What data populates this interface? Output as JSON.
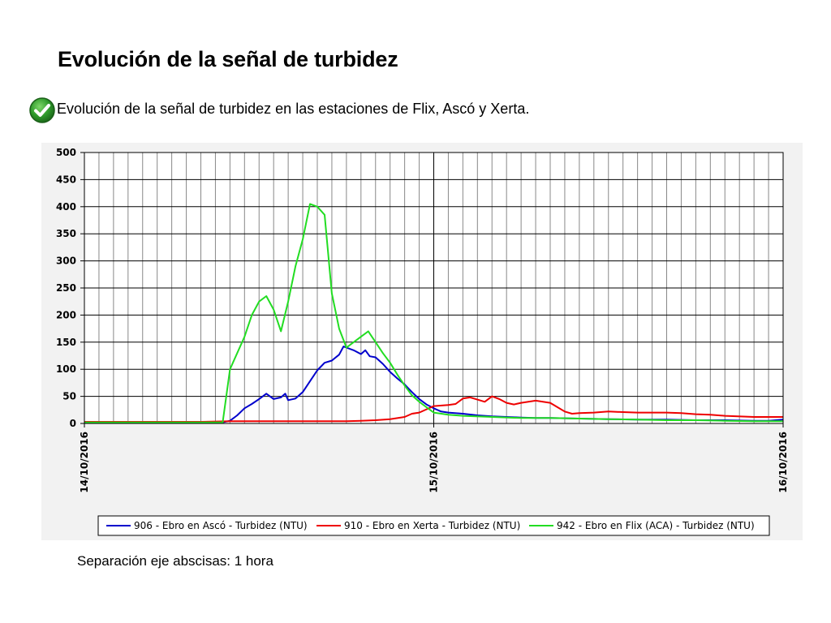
{
  "slide": {
    "title": "Evolución de la señal de turbidez",
    "bullet_icon": "checkmark-circle-icon",
    "bullet_text": "Evolución de la señal de turbidez en las estaciones de Flix, Ascó y Xerta.",
    "note": "Separación eje abscisas: 1 hora"
  },
  "chart_data": {
    "type": "line",
    "title": "",
    "xlabel": "",
    "ylabel": "",
    "x_unit": "hours from 14/10/2016 00:00",
    "xlim": [
      0,
      48
    ],
    "ylim": [
      0,
      500
    ],
    "yticks": [
      0,
      50,
      100,
      150,
      200,
      250,
      300,
      350,
      400,
      450,
      500
    ],
    "xticks": [
      {
        "x": 0,
        "label": "14/10/2016"
      },
      {
        "x": 24,
        "label": "15/10/2016"
      },
      {
        "x": 48,
        "label": "16/10/2016"
      }
    ],
    "grid": true,
    "legend_position": "bottom",
    "series": [
      {
        "name": "906 - Ebro en Ascó - Turbidez (NTU)",
        "color": "#0000cc",
        "points": [
          [
            0,
            2
          ],
          [
            2,
            3
          ],
          [
            4,
            2
          ],
          [
            6,
            2
          ],
          [
            8,
            2
          ],
          [
            9.5,
            2
          ],
          [
            10,
            5
          ],
          [
            10.5,
            15
          ],
          [
            11,
            28
          ],
          [
            11.5,
            36
          ],
          [
            12,
            45
          ],
          [
            12.5,
            55
          ],
          [
            13,
            45
          ],
          [
            13.5,
            48
          ],
          [
            13.8,
            55
          ],
          [
            14,
            43
          ],
          [
            14.5,
            46
          ],
          [
            15,
            58
          ],
          [
            15.5,
            78
          ],
          [
            16,
            98
          ],
          [
            16.5,
            112
          ],
          [
            17,
            116
          ],
          [
            17.5,
            127
          ],
          [
            17.8,
            142
          ],
          [
            18,
            140
          ],
          [
            18.5,
            135
          ],
          [
            19,
            128
          ],
          [
            19.3,
            135
          ],
          [
            19.6,
            124
          ],
          [
            20,
            122
          ],
          [
            20.5,
            110
          ],
          [
            21,
            95
          ],
          [
            21.5,
            83
          ],
          [
            22,
            72
          ],
          [
            22.5,
            58
          ],
          [
            23,
            45
          ],
          [
            23.5,
            35
          ],
          [
            24,
            28
          ],
          [
            24.5,
            22
          ],
          [
            25,
            20
          ],
          [
            26,
            18
          ],
          [
            27,
            15
          ],
          [
            28,
            13
          ],
          [
            29,
            12
          ],
          [
            30,
            11
          ],
          [
            31,
            10
          ],
          [
            32,
            10
          ],
          [
            34,
            9
          ],
          [
            36,
            8
          ],
          [
            38,
            7
          ],
          [
            40,
            7
          ],
          [
            42,
            6
          ],
          [
            44,
            6
          ],
          [
            46,
            5
          ],
          [
            47,
            5
          ],
          [
            48,
            7
          ]
        ]
      },
      {
        "name": "910 - Ebro en Xerta - Turbidez (NTU)",
        "color": "#ee0000",
        "points": [
          [
            0,
            3
          ],
          [
            4,
            3
          ],
          [
            8,
            3
          ],
          [
            10,
            4
          ],
          [
            12,
            4
          ],
          [
            14,
            4
          ],
          [
            16,
            4
          ],
          [
            18,
            4
          ],
          [
            19,
            5
          ],
          [
            20,
            6
          ],
          [
            21,
            8
          ],
          [
            22,
            12
          ],
          [
            22.5,
            18
          ],
          [
            23,
            20
          ],
          [
            23.5,
            26
          ],
          [
            24,
            32
          ],
          [
            25,
            34
          ],
          [
            25.5,
            36
          ],
          [
            26,
            46
          ],
          [
            26.5,
            48
          ],
          [
            27,
            44
          ],
          [
            27.5,
            40
          ],
          [
            28,
            50
          ],
          [
            28.5,
            45
          ],
          [
            29,
            38
          ],
          [
            29.5,
            35
          ],
          [
            30,
            38
          ],
          [
            30.5,
            40
          ],
          [
            31,
            42
          ],
          [
            31.5,
            40
          ],
          [
            32,
            38
          ],
          [
            32.5,
            30
          ],
          [
            33,
            22
          ],
          [
            33.5,
            18
          ],
          [
            34,
            19
          ],
          [
            35,
            20
          ],
          [
            36,
            22
          ],
          [
            37,
            21
          ],
          [
            38,
            20
          ],
          [
            40,
            20
          ],
          [
            41,
            19
          ],
          [
            42,
            17
          ],
          [
            43,
            16
          ],
          [
            44,
            14
          ],
          [
            46,
            12
          ],
          [
            48,
            12
          ]
        ]
      },
      {
        "name": "942 - Ebro en Flix (ACA) - Turbidez (NTU)",
        "color": "#22dd22",
        "points": [
          [
            0,
            2
          ],
          [
            4,
            2
          ],
          [
            6,
            2
          ],
          [
            8,
            2
          ],
          [
            9.5,
            2
          ],
          [
            10,
            100
          ],
          [
            11,
            160
          ],
          [
            11.5,
            200
          ],
          [
            12,
            225
          ],
          [
            12.5,
            235
          ],
          [
            13,
            210
          ],
          [
            13.5,
            170
          ],
          [
            14,
            225
          ],
          [
            14.5,
            290
          ],
          [
            15,
            340
          ],
          [
            15.5,
            405
          ],
          [
            16,
            400
          ],
          [
            16.5,
            385
          ],
          [
            17,
            240
          ],
          [
            17.5,
            175
          ],
          [
            18,
            140
          ],
          [
            18.5,
            150
          ],
          [
            19,
            160
          ],
          [
            19.5,
            170
          ],
          [
            20,
            150
          ],
          [
            20.5,
            130
          ],
          [
            21,
            112
          ],
          [
            21.5,
            90
          ],
          [
            22,
            70
          ],
          [
            22.5,
            52
          ],
          [
            23,
            40
          ],
          [
            23.5,
            30
          ],
          [
            24,
            20
          ],
          [
            25,
            16
          ],
          [
            26,
            14
          ],
          [
            28,
            12
          ],
          [
            30,
            10
          ],
          [
            32,
            10
          ],
          [
            34,
            9
          ],
          [
            36,
            8
          ],
          [
            38,
            7
          ],
          [
            40,
            6
          ],
          [
            42,
            6
          ],
          [
            44,
            5
          ],
          [
            46,
            4
          ],
          [
            48,
            4
          ]
        ]
      }
    ]
  }
}
